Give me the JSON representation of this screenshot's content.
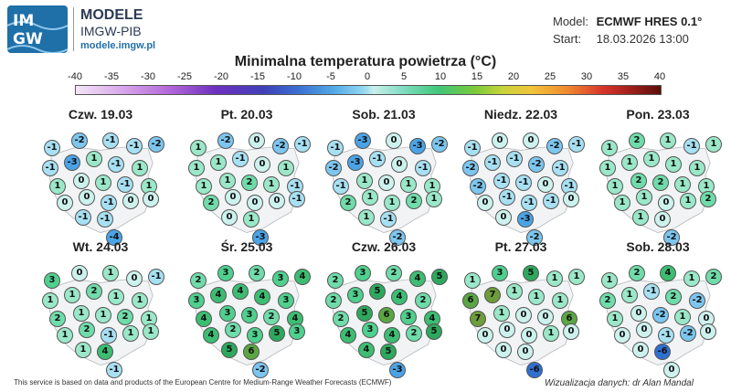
{
  "brand": {
    "logo_line1": "IM",
    "logo_line2": "GW",
    "name": "MODELE",
    "org": "IMGW-PIB",
    "site": "modele.imgw.pl"
  },
  "meta": {
    "model_key": "Model:",
    "model_value": "ECMWF HRES 0.1°",
    "start_key": "Start:",
    "start_value": "18.03.2026 13:00"
  },
  "title": "Minimalna temperatura powietrza (°C)",
  "colorbar": {
    "ticks": [
      "-40",
      "-35",
      "-30",
      "-25",
      "-20",
      "-15",
      "-10",
      "-5",
      "0",
      "5",
      "10",
      "15",
      "20",
      "25",
      "30",
      "35",
      "40"
    ]
  },
  "maps": [
    {
      "date": "Czw. 19.03",
      "values": [
        "-1",
        "-2",
        "-1",
        "-1",
        "-2",
        "-1",
        "-3",
        "1",
        "-1",
        "1",
        "1",
        "0",
        "1",
        "-1",
        "1",
        "0",
        "0",
        "-1",
        "0",
        "0",
        "-1",
        "-1",
        "-4"
      ]
    },
    {
      "date": "Pt. 20.03",
      "values": [
        "1",
        "-2",
        "0",
        "-2",
        "-1",
        "1",
        "1",
        "-1",
        "0",
        "1",
        "1",
        "1",
        "2",
        "1",
        "-1",
        "2",
        "0",
        "0",
        "0",
        "-1",
        "0",
        "1",
        "-3"
      ]
    },
    {
      "date": "Sob. 21.03",
      "values": [
        "-1",
        "-3",
        "0",
        "-3",
        "-2",
        "-2",
        "-3",
        "-1",
        "0",
        "-1",
        "-1",
        "1",
        "0",
        "1",
        "1",
        "2",
        "1",
        "1",
        "2",
        "1",
        "1",
        "-1",
        "-2"
      ]
    },
    {
      "date": "Niedz. 22.03",
      "values": [
        "-1",
        "0",
        "0",
        "-2",
        "-1",
        "-2",
        "-1",
        "-1",
        "-2",
        "-1",
        "-2",
        "-1",
        "-1",
        "0",
        "-1",
        "0",
        "-1",
        "-1",
        "-1",
        "0",
        "0",
        "-3",
        "-2"
      ]
    },
    {
      "date": "Pon. 23.03",
      "values": [
        "1",
        "2",
        "1",
        "-1",
        "1",
        "1",
        "1",
        "1",
        "1",
        "1",
        "1",
        "2",
        "2",
        "1",
        "1",
        "1",
        "1",
        "0",
        "1",
        "2",
        "1",
        "0",
        "-2"
      ]
    },
    {
      "date": "Wt. 24.03",
      "values": [
        "3",
        "0",
        "1",
        "0",
        "-1",
        "1",
        "1",
        "2",
        "1",
        "1",
        "2",
        "1",
        "1",
        "2",
        "1",
        "1",
        "2",
        "-1",
        "1",
        "1",
        "1",
        "4",
        "-1"
      ]
    },
    {
      "date": "Śr. 25.03",
      "values": [
        "2",
        "3",
        "2",
        "3",
        "4",
        "3",
        "4",
        "4",
        "4",
        "3",
        "4",
        "3",
        "3",
        "2",
        "4",
        "4",
        "2",
        "3",
        "5",
        "3",
        "5",
        "6",
        "-2"
      ]
    },
    {
      "date": "Czw. 26.03",
      "values": [
        "2",
        "3",
        "2",
        "4",
        "5",
        "2",
        "3",
        "5",
        "4",
        "2",
        "2",
        "5",
        "6",
        "3",
        "4",
        "4",
        "3",
        "4",
        "2",
        "5",
        "4",
        "5",
        "-3"
      ]
    },
    {
      "date": "Pt. 27.03",
      "values": [
        "1",
        "3",
        "5",
        "1",
        "1",
        "6",
        "7",
        "1",
        "1",
        "1",
        "7",
        "1",
        "0",
        "0",
        "6",
        "0",
        "0",
        "0",
        "1",
        "0",
        "0",
        "0",
        "-6"
      ]
    },
    {
      "date": "Sob. 28.03",
      "values": [
        "1",
        "2",
        "4",
        "1",
        "2",
        "2",
        "1",
        "-1",
        "2",
        "-2",
        "1",
        "0",
        "-2",
        "1",
        "0",
        "0",
        "0",
        "-1",
        "-2",
        "0",
        "0",
        "-6",
        "0"
      ]
    }
  ],
  "footer": "This service is based on data and products of the European Centre for Medium-Range Weather Forecasts (ECMWF)",
  "credit": "Wizualizacja danych: dr Alan Mandal"
}
